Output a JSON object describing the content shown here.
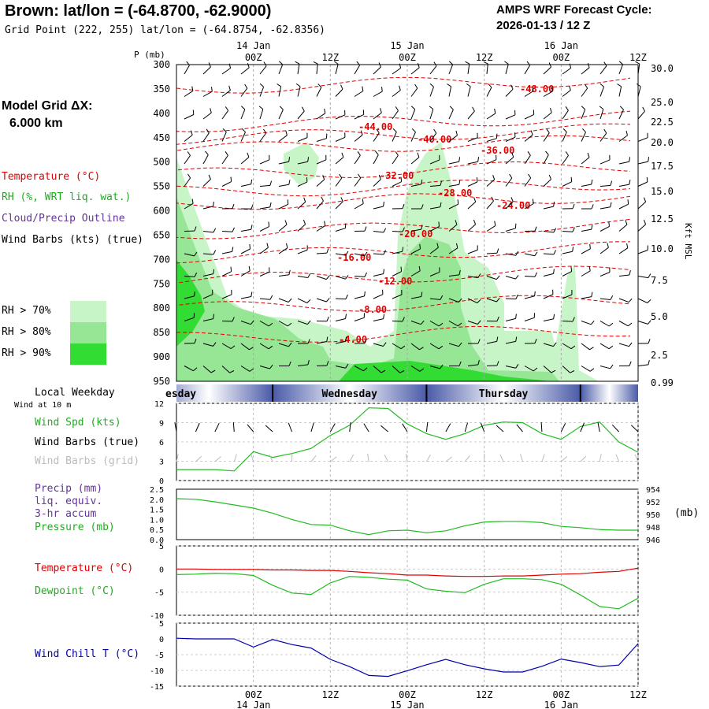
{
  "header": {
    "title": "Brown:  lat/lon = (-64.8700, -62.9000)",
    "subtitle": "Grid Point (222, 255) lat/lon = (-64.8754, -62.8356)",
    "cycle_line1": "AMPS WRF Forecast Cycle:",
    "cycle_line2": "2026-01-13 / 12  Z"
  },
  "model": {
    "label": "Model Grid ΔX:",
    "value": "6.000 km"
  },
  "legend": {
    "temperature": "Temperature (°C)",
    "rh": "RH (%, WRT liq. wat.)",
    "cloud": "Cloud/Precip Outline",
    "wind": "Wind Barbs (kts) (true)",
    "rh70": "RH > 70%",
    "rh80": "RH > 80%",
    "rh90": "RH > 90%"
  },
  "colors": {
    "temperature": "#e00000",
    "rh70": "#c8f5c8",
    "rh80": "#96e696",
    "rh90": "#32dc32",
    "wind_line": "#22bb22",
    "pressure_line": "#22bb22",
    "dewpoint_line": "#22bb22",
    "windchill_line": "#0000aa",
    "precip_label": "#663399",
    "day_band": "#4a5aa8"
  },
  "time_axis": {
    "top_hours": [
      "00Z",
      "12Z",
      "00Z",
      "12Z",
      "00Z",
      "12Z"
    ],
    "top_days": [
      "14 Jan",
      "15 Jan",
      "16 Jan"
    ],
    "weekday_label": "Local Weekday",
    "weekdays": [
      "Tuesday",
      "Wednesday",
      "Thursday"
    ],
    "weekday_partial": "esday"
  },
  "sounding": {
    "p_axis_label": "P (mb)",
    "pressure_levels": [
      "300",
      "350",
      "400",
      "450",
      "500",
      "550",
      "600",
      "650",
      "700",
      "750",
      "800",
      "850",
      "900",
      "950"
    ],
    "height_axis_label": "Kft MSL",
    "height_ticks": [
      "30.0",
      "25.0",
      "22.5",
      "20.0",
      "17.5",
      "15.0",
      "12.5",
      "10.0",
      "7.5",
      "5.0",
      "2.5",
      "0.99"
    ],
    "isotherm_labels": [
      "-48.00",
      "-44.00",
      "-40.00",
      "-36.00",
      "-32.00",
      "-28.00",
      "-24.00",
      "-20.00",
      "-16.00",
      "-12.00",
      "-8.00",
      "-4.00"
    ]
  },
  "panels": {
    "wind": {
      "caption": "Wind at 10 m",
      "spd_label": "Wind Spd (kts)",
      "barbs_true_label": "Wind Barbs (true)",
      "barbs_grid_label": "Wind Barbs (grid)",
      "yticks": [
        "12",
        "9",
        "6",
        "3",
        "0"
      ]
    },
    "precip": {
      "label1": "Precip (mm)",
      "label2": "liq. equiv.",
      "label3": "3-hr accum",
      "pressure_label": "Pressure (mb)",
      "left_ticks": [
        "2.5",
        "2.0",
        "1.5",
        "1.0",
        "0.5",
        "0.0"
      ],
      "right_ticks": [
        "954",
        "952",
        "950",
        "948",
        "946"
      ],
      "right_unit": "(mb)"
    },
    "temp": {
      "temp_label": "Temperature (°C)",
      "dew_label": "Dewpoint (°C)",
      "yticks": [
        "5",
        "0",
        "-5",
        "-10"
      ]
    },
    "chill": {
      "label": "Wind Chill T (°C)",
      "yticks": [
        "5",
        "0",
        "-5",
        "-10",
        "-15"
      ]
    }
  },
  "chart_data": [
    {
      "type": "line",
      "title": "Wind Spd (kts)",
      "x_hours": [
        -12,
        -9,
        -6,
        -3,
        0,
        3,
        6,
        9,
        12,
        15,
        18,
        21,
        24,
        27,
        30,
        33,
        36,
        39,
        42,
        45,
        48,
        51,
        54,
        57,
        60
      ],
      "series": [
        {
          "name": "Wind Spd (kts)",
          "values": [
            1.7,
            1.7,
            1.7,
            1.5,
            4.5,
            3.6,
            4.2,
            5.0,
            7.0,
            8.6,
            11.3,
            11.2,
            8.8,
            7.3,
            6.4,
            7.3,
            8.6,
            9.1,
            9.0,
            7.3,
            6.4,
            8.4,
            9.1,
            6.0,
            4.4
          ]
        }
      ],
      "ylim": [
        0,
        12
      ]
    },
    {
      "type": "line",
      "title": "Pressure (mb)",
      "x_hours": [
        -12,
        -9,
        -6,
        -3,
        0,
        3,
        6,
        9,
        12,
        15,
        18,
        21,
        24,
        27,
        30,
        33,
        36,
        39,
        42,
        45,
        48,
        51,
        54,
        57,
        60
      ],
      "series": [
        {
          "name": "Pressure (mb)",
          "values": [
            952.5,
            952.4,
            952.0,
            951.5,
            951.0,
            950.2,
            949.2,
            948.4,
            948.3,
            947.4,
            946.8,
            947.4,
            947.5,
            947.1,
            947.4,
            948.2,
            948.8,
            948.9,
            948.9,
            948.7,
            948.1,
            947.9,
            947.6,
            947.5,
            947.5
          ]
        }
      ],
      "ylim": [
        946,
        954
      ]
    },
    {
      "type": "line",
      "title": "Temperature / Dewpoint (°C)",
      "x_hours": [
        -12,
        -9,
        -6,
        -3,
        0,
        3,
        6,
        9,
        12,
        15,
        18,
        21,
        24,
        27,
        30,
        33,
        36,
        39,
        42,
        45,
        48,
        51,
        54,
        57,
        60
      ],
      "series": [
        {
          "name": "Temperature (°C)",
          "values": [
            0.0,
            0.0,
            -0.1,
            -0.1,
            -0.1,
            -0.2,
            -0.2,
            -0.3,
            -0.3,
            -0.5,
            -0.8,
            -1.0,
            -1.3,
            -1.3,
            -1.5,
            -1.6,
            -1.6,
            -1.5,
            -1.5,
            -1.3,
            -1.1,
            -1.0,
            -0.7,
            -0.5,
            0.2
          ]
        },
        {
          "name": "Dewpoint (°C)",
          "values": [
            -1.2,
            -1.1,
            -0.9,
            -1.0,
            -1.4,
            -3.5,
            -5.2,
            -5.5,
            -3.0,
            -1.6,
            -1.8,
            -2.2,
            -2.4,
            -4.3,
            -4.8,
            -5.1,
            -3.3,
            -2.1,
            -2.1,
            -2.3,
            -3.3,
            -5.6,
            -8.1,
            -8.6,
            -6.3
          ]
        }
      ],
      "ylim": [
        -10,
        5
      ]
    },
    {
      "type": "line",
      "title": "Wind Chill T (°C)",
      "x_hours": [
        -12,
        -9,
        -6,
        -3,
        0,
        3,
        6,
        9,
        12,
        15,
        18,
        21,
        24,
        27,
        30,
        33,
        36,
        39,
        42,
        45,
        48,
        51,
        54,
        57,
        60
      ],
      "series": [
        {
          "name": "Wind Chill T (°C)",
          "values": [
            0.2,
            0.0,
            0.0,
            0.0,
            -2.6,
            -0.2,
            -1.8,
            -2.9,
            -6.5,
            -8.8,
            -11.6,
            -11.9,
            -10.1,
            -8.2,
            -6.5,
            -8.2,
            -9.5,
            -10.5,
            -10.5,
            -8.7,
            -6.4,
            -7.5,
            -8.8,
            -8.3,
            -1.5
          ]
        }
      ],
      "ylim": [
        -15,
        5
      ]
    }
  ]
}
